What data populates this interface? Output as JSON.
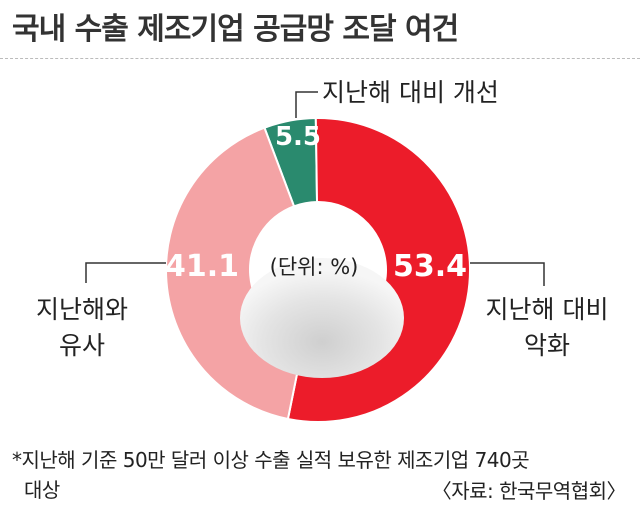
{
  "title": "국내 수출 제조기업 공급망 조달 여건",
  "chart_data": {
    "type": "pie",
    "title": "국내 수출 제조기업 공급망 조달 여건",
    "unit_label": "(단위: %)",
    "slices": [
      {
        "label": "지난해 대비 개선",
        "value": 5.5,
        "value_label": "5.5",
        "color": "#2a8a6e"
      },
      {
        "label": "지난해 대비 악화",
        "value": 53.4,
        "value_label": "53.4",
        "color": "#ec1c2a"
      },
      {
        "label": "지난해와 유사",
        "value": 41.1,
        "value_label": "41.1",
        "color": "#f4a3a5"
      }
    ]
  },
  "labels": {
    "improved": "지난해 대비 개선",
    "worse_line1": "지난해 대비",
    "worse_line2": "악화",
    "similar_line1": "지난해와",
    "similar_line2": "유사"
  },
  "note": {
    "line1": "*지난해 기준 50만 달러 이상 수출 실적 보유한 제조기업 740곳",
    "line2": "대상"
  },
  "source": "〈자료: 한국무역협회〉"
}
